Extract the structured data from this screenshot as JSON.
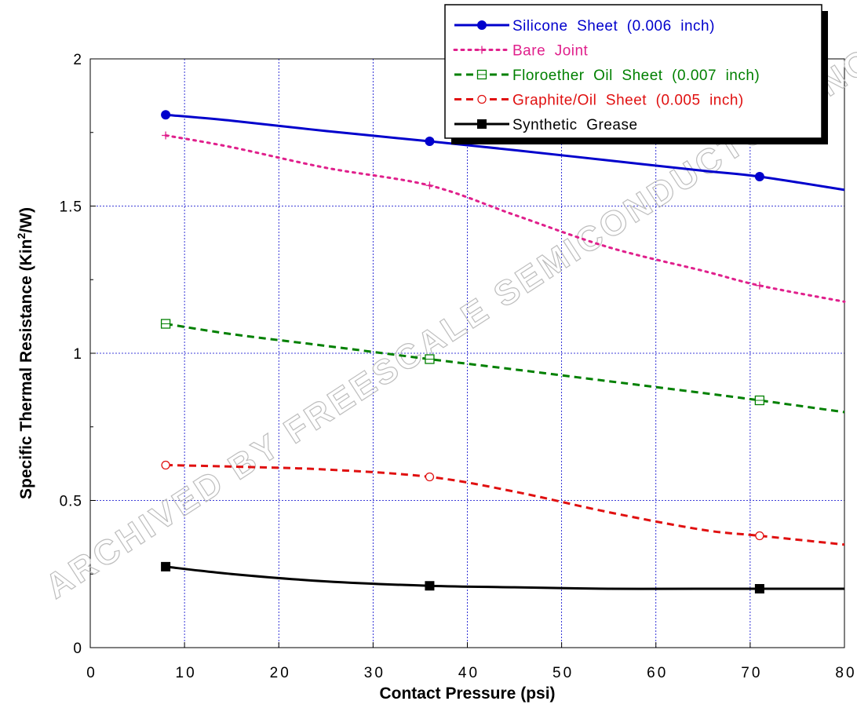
{
  "chart_data": {
    "type": "line",
    "title": "",
    "xlabel": "Contact Pressure (psi)",
    "ylabel_main": "Specific Thermal Resistance (Kin",
    "ylabel_sup": "2",
    "ylabel_end": "/W)",
    "xlim": [
      0,
      80
    ],
    "ylim": [
      0,
      2
    ],
    "grid": true,
    "legend_position": "top-right",
    "x_ticks": [
      "0",
      "10",
      "20",
      "30",
      "40",
      "50",
      "60",
      "70",
      "80"
    ],
    "y_ticks": [
      "0",
      "0.5",
      "1",
      "1.5",
      "2"
    ],
    "watermark": "ARCHIVED BY FREESCALE SEMICONDUCTOR, INC.",
    "series": [
      {
        "name": "Silicone  Sheet  (0.006  inch)",
        "color": "#0000cc",
        "dash": "solid",
        "marker": "filled-circle",
        "markers": [
          [
            8,
            1.81
          ],
          [
            36,
            1.72
          ],
          [
            71,
            1.6
          ]
        ],
        "curve": [
          [
            8,
            1.81
          ],
          [
            15,
            1.79
          ],
          [
            25,
            1.755
          ],
          [
            36,
            1.72
          ],
          [
            45,
            1.69
          ],
          [
            55,
            1.655
          ],
          [
            65,
            1.62
          ],
          [
            71,
            1.6
          ],
          [
            80,
            1.555
          ]
        ]
      },
      {
        "name": "Bare  Joint",
        "color": "#e0208c",
        "dash": "dot",
        "marker": "plus",
        "markers": [
          [
            8,
            1.74
          ],
          [
            36,
            1.57
          ],
          [
            71,
            1.23
          ]
        ],
        "curve": [
          [
            8,
            1.74
          ],
          [
            15,
            1.7
          ],
          [
            25,
            1.63
          ],
          [
            36,
            1.57
          ],
          [
            45,
            1.47
          ],
          [
            55,
            1.36
          ],
          [
            65,
            1.28
          ],
          [
            71,
            1.23
          ],
          [
            80,
            1.175
          ]
        ]
      },
      {
        "name": "Floroether  Oil  Sheet  (0.007  inch)",
        "color": "#008000",
        "dash": "dash",
        "marker": "open-square",
        "markers": [
          [
            8,
            1.1
          ],
          [
            36,
            0.98
          ],
          [
            71,
            0.84
          ]
        ],
        "curve": [
          [
            8,
            1.1
          ],
          [
            15,
            1.065
          ],
          [
            25,
            1.025
          ],
          [
            36,
            0.98
          ],
          [
            45,
            0.945
          ],
          [
            55,
            0.905
          ],
          [
            65,
            0.865
          ],
          [
            71,
            0.84
          ],
          [
            80,
            0.8
          ]
        ]
      },
      {
        "name": "Graphite/Oil  Sheet  (0.005  inch)",
        "color": "#e01010",
        "dash": "dash",
        "marker": "open-circle",
        "markers": [
          [
            8,
            0.62
          ],
          [
            36,
            0.58
          ],
          [
            71,
            0.38
          ]
        ],
        "curve": [
          [
            8,
            0.62
          ],
          [
            15,
            0.615
          ],
          [
            25,
            0.605
          ],
          [
            36,
            0.58
          ],
          [
            45,
            0.53
          ],
          [
            55,
            0.46
          ],
          [
            65,
            0.4
          ],
          [
            71,
            0.38
          ],
          [
            80,
            0.35
          ]
        ]
      },
      {
        "name": "Synthetic  Grease",
        "color": "#000000",
        "dash": "solid",
        "marker": "filled-square",
        "markers": [
          [
            8,
            0.275
          ],
          [
            36,
            0.21
          ],
          [
            71,
            0.2
          ]
        ],
        "curve": [
          [
            8,
            0.275
          ],
          [
            15,
            0.25
          ],
          [
            25,
            0.225
          ],
          [
            36,
            0.21
          ],
          [
            45,
            0.205
          ],
          [
            55,
            0.2
          ],
          [
            65,
            0.2
          ],
          [
            71,
            0.2
          ],
          [
            80,
            0.2
          ]
        ]
      }
    ]
  }
}
